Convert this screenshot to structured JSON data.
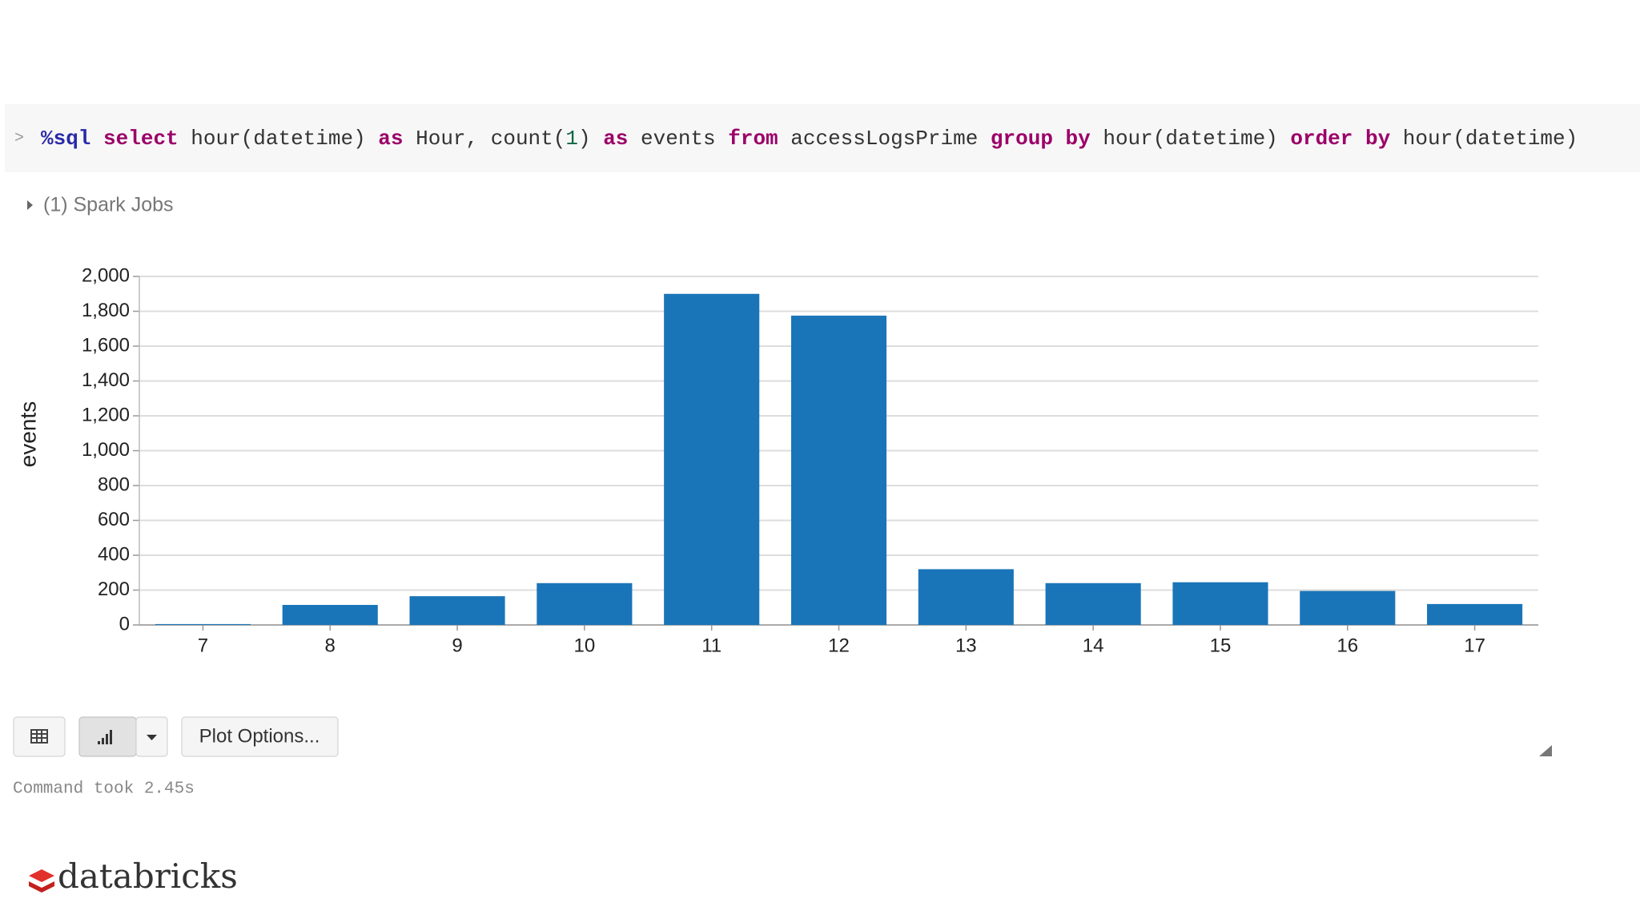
{
  "code": {
    "prompt": ">",
    "tokens": [
      {
        "text": "%sql",
        "color": "#2a2aa8",
        "bold": true
      },
      {
        "text": " ",
        "color": "#333333"
      },
      {
        "text": "select",
        "color": "#9b0068",
        "bold": true
      },
      {
        "text": " hour(datetime) ",
        "color": "#333333"
      },
      {
        "text": "as",
        "color": "#9b0068",
        "bold": true
      },
      {
        "text": " Hour, count(",
        "color": "#333333"
      },
      {
        "text": "1",
        "color": "#116644"
      },
      {
        "text": ") ",
        "color": "#333333"
      },
      {
        "text": "as",
        "color": "#9b0068",
        "bold": true
      },
      {
        "text": " events ",
        "color": "#333333"
      },
      {
        "text": "from",
        "color": "#9b0068",
        "bold": true
      },
      {
        "text": " accessLogsPrime ",
        "color": "#333333"
      },
      {
        "text": "group by",
        "color": "#9b0068",
        "bold": true
      },
      {
        "text": " hour(datetime) ",
        "color": "#333333"
      },
      {
        "text": "order by",
        "color": "#9b0068",
        "bold": true
      },
      {
        "text": " hour(datetime)",
        "color": "#333333"
      }
    ]
  },
  "jobs": "(1) Spark Jobs",
  "chart_data": {
    "type": "bar",
    "y_label": "events",
    "categories": [
      "7",
      "8",
      "9",
      "10",
      "11",
      "12",
      "13",
      "14",
      "15",
      "16",
      "17"
    ],
    "values": [
      5,
      115,
      165,
      240,
      1900,
      1775,
      320,
      240,
      245,
      195,
      120
    ],
    "color": "#1a75b8",
    "ylim": [
      0,
      2000
    ],
    "yticks": [
      0,
      {
        "value": 200,
        "label": "200"
      },
      {
        "value": 400,
        "label": "400"
      },
      {
        "value": 600,
        "label": "600"
      },
      {
        "value": 800,
        "label": "800"
      },
      {
        "value": 1000,
        "label": "1,000"
      },
      {
        "value": 1200,
        "label": "1,200"
      },
      {
        "value": 1400,
        "label": "1,400"
      },
      {
        "value": 1600,
        "label": "1,600"
      },
      {
        "value": 1800,
        "label": "1,800"
      },
      {
        "value": 2000,
        "label": "2,000"
      }
    ],
    "grid": true
  },
  "toolbar": {
    "plot_options": "Plot Options..."
  },
  "status": "Command took 2.45s",
  "logo": "databricks"
}
